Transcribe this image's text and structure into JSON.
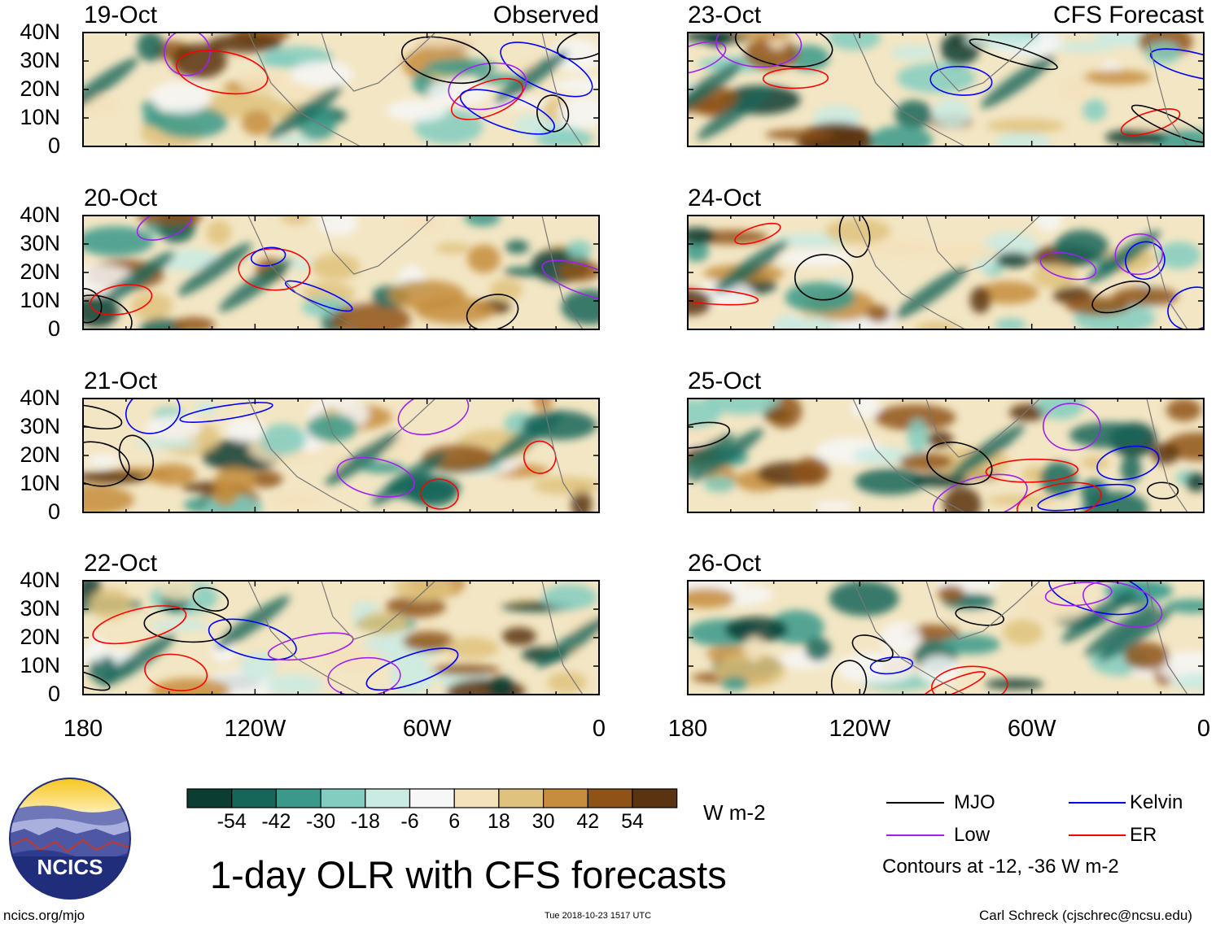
{
  "title": "1-day OLR with CFS forecasts",
  "left_column_label": "Observed",
  "right_column_label": "CFS Forecast",
  "panels_left": [
    {
      "date": "19-Oct"
    },
    {
      "date": "20-Oct"
    },
    {
      "date": "21-Oct"
    },
    {
      "date": "22-Oct"
    }
  ],
  "panels_right": [
    {
      "date": "23-Oct"
    },
    {
      "date": "24-Oct"
    },
    {
      "date": "25-Oct"
    },
    {
      "date": "26-Oct"
    }
  ],
  "chart_data": {
    "type": "heatmap",
    "variable": "OLR anomaly",
    "units": "W m-2",
    "xaxis": {
      "ticks": [
        "180",
        "120W",
        "60W",
        "0"
      ],
      "range": [
        -180,
        0
      ]
    },
    "yaxis": {
      "ticks": [
        "40N",
        "30N",
        "20N",
        "10N",
        "0"
      ],
      "range": [
        0,
        40
      ]
    },
    "colorbar": {
      "labels": [
        "-54",
        "-42",
        "-30",
        "-18",
        "-6",
        "6",
        "18",
        "30",
        "42",
        "54"
      ],
      "colors": [
        "#0b3d33",
        "#16665a",
        "#3a998a",
        "#82cdbf",
        "#c9ebe4",
        "#f7f7f7",
        "#f4e2bb",
        "#dfc27d",
        "#c68d3c",
        "#8f5315",
        "#5a3410"
      ]
    },
    "legend": [
      {
        "name": "MJO",
        "color": "#000000"
      },
      {
        "name": "Kelvin",
        "color": "#0000ff"
      },
      {
        "name": "Low",
        "color": "#a020f0"
      },
      {
        "name": "ER",
        "color": "#ff0000"
      }
    ],
    "contour_note": "Contours at -12, -36 W m-2"
  },
  "logo": {
    "text": "NCICS"
  },
  "footer": {
    "left": "ncics.org/mjo",
    "center": "Tue 2018-10-23 1517 UTC",
    "right": "Carl Schreck (cjschrec@ncsu.edu)"
  }
}
